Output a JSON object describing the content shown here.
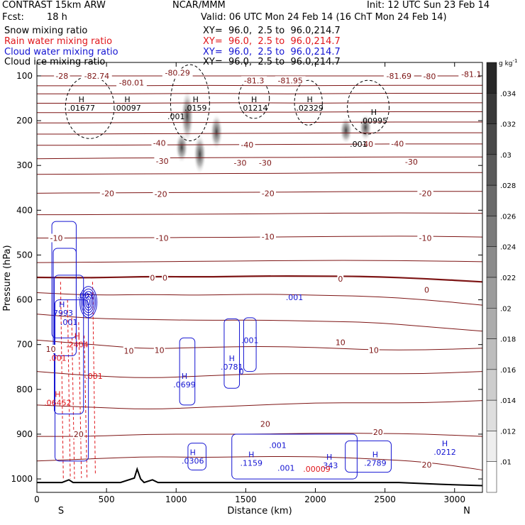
{
  "header": {
    "model": "CONTRAST 15km ARW",
    "center": "NCAR/MMM",
    "init": "Init: 12 UTC Sun 23 Feb 14",
    "fcst_label": "Fcst:",
    "fcst_value": "18 h",
    "valid": "Valid: 06 UTC Mon 24 Feb 14 (16 ChT Mon 24 Feb 14)",
    "fields": [
      {
        "name": "Snow mixing ratio",
        "xy": "XY=  96.0,  2.5 to  96.0,214.7",
        "color": "#000000"
      },
      {
        "name": "Rain water mixing ratio",
        "xy": "XY=  96.0,  2.5 to  96.0,214.7",
        "color": "#e0161b"
      },
      {
        "name": "Cloud water mixing ratio",
        "xy": "XY=  96.0,  2.5 to  96.0,214.7",
        "color": "#1414d2"
      },
      {
        "name": "Cloud ice mixing ratio",
        "xy": "XY=  96.0,  2.5 to  96.0,214.7",
        "color": "#000000"
      }
    ]
  },
  "chart_data": {
    "type": "contour",
    "xlabel": "Distance (km)",
    "ylabel": "Pressure (hPa)",
    "xlim": [
      0,
      3200
    ],
    "ylim": [
      1030,
      70
    ],
    "x_ticks": [
      0,
      500,
      1000,
      1500,
      2000,
      2500,
      3000
    ],
    "y_ticks": [
      100,
      200,
      300,
      400,
      500,
      600,
      700,
      800,
      900,
      1000
    ],
    "x_end_labels": {
      "left": "S",
      "right": "N"
    },
    "colorbar": {
      "unit": "g kg",
      "unit_exp": "-1",
      "ticks": [
        ".034",
        ".032",
        ".03",
        ".028",
        ".026",
        ".024",
        ".022",
        ".02",
        ".018",
        ".016",
        ".014",
        ".012",
        ".01"
      ]
    },
    "temperature_contours": {
      "color": "#7d1414",
      "lines": [
        {
          "y": [
            100,
            100,
            100,
            100,
            100,
            100,
            100,
            100,
            100
          ]
        },
        {
          "y": [
            122,
            122,
            122,
            121,
            122,
            122,
            121,
            121,
            121
          ]
        },
        {
          "y": [
            140,
            140,
            140,
            139,
            140,
            140,
            139,
            139,
            139
          ]
        },
        {
          "y": [
            161,
            161,
            161,
            160,
            160,
            161,
            160,
            160,
            160
          ]
        },
        {
          "y": [
            182,
            182,
            182,
            181,
            181,
            181,
            180,
            180,
            180
          ]
        },
        {
          "y": [
            205,
            205,
            204,
            204,
            204,
            204,
            203,
            203,
            203
          ]
        },
        {
          "y": [
            230,
            230,
            229,
            229,
            228,
            228,
            227,
            227,
            227
          ]
        },
        {
          "y": [
            255,
            255,
            254,
            254,
            253,
            253,
            252,
            252,
            252
          ]
        },
        {
          "y": [
            285,
            284,
            283,
            283,
            282,
            282,
            281,
            281,
            281
          ]
        },
        {
          "y": [
            320,
            319,
            319,
            318,
            318,
            317,
            316,
            316,
            316
          ]
        },
        {
          "y": [
            362,
            361,
            361,
            360,
            360,
            359,
            358,
            358,
            358
          ]
        },
        {
          "y": [
            410,
            410,
            409,
            409,
            408,
            407,
            406,
            406,
            407
          ]
        },
        {
          "y": [
            462,
            462,
            461,
            461,
            460,
            459,
            458,
            458,
            460
          ]
        },
        {
          "y": [
            517,
            516,
            515,
            514,
            513,
            512,
            512,
            513,
            515
          ]
        },
        {
          "y": [
            550,
            551,
            548,
            549,
            547,
            547,
            548,
            553,
            560
          ],
          "thick": true
        },
        {
          "y": [
            584,
            590,
            588,
            590,
            587,
            590,
            592,
            600,
            612
          ]
        },
        {
          "y": [
            632,
            642,
            644,
            646,
            645,
            648,
            650,
            660,
            670
          ]
        },
        {
          "y": [
            690,
            700,
            710,
            706,
            704,
            706,
            712,
            712,
            708
          ]
        },
        {
          "y": [
            760,
            770,
            775,
            770,
            765,
            765,
            765,
            765,
            760
          ]
        },
        {
          "y": [
            835,
            840,
            845,
            840,
            835,
            830,
            830,
            830,
            825
          ]
        },
        {
          "y": [
            905,
            905,
            900,
            900,
            900,
            898,
            898,
            900,
            905
          ]
        },
        {
          "y": [
            960,
            955,
            950,
            952,
            950,
            950,
            955,
            962,
            980
          ]
        }
      ],
      "labels": [
        {
          "x": 180,
          "p": 100,
          "text": "-28"
        },
        {
          "x": 430,
          "p": 100,
          "text": "-82.74"
        },
        {
          "x": 680,
          "p": 115,
          "text": "-80.01"
        },
        {
          "x": 1010,
          "p": 93,
          "text": "-80.29"
        },
        {
          "x": 1560,
          "p": 110,
          "text": "-81.3"
        },
        {
          "x": 1820,
          "p": 110,
          "text": "-81.95"
        },
        {
          "x": 2600,
          "p": 100,
          "text": "-81.69"
        },
        {
          "x": 2820,
          "p": 101,
          "text": "-80"
        },
        {
          "x": 3120,
          "p": 96,
          "text": "-81.1"
        },
        {
          "x": 880,
          "p": 250,
          "text": "-40"
        },
        {
          "x": 1510,
          "p": 254,
          "text": "-40"
        },
        {
          "x": 2370,
          "p": 252,
          "text": "-40"
        },
        {
          "x": 2590,
          "p": 251,
          "text": "-40"
        },
        {
          "x": 900,
          "p": 290,
          "text": "-30"
        },
        {
          "x": 1460,
          "p": 294,
          "text": "-30"
        },
        {
          "x": 1640,
          "p": 294,
          "text": "-30"
        },
        {
          "x": 2690,
          "p": 292,
          "text": "-30"
        },
        {
          "x": 510,
          "p": 362,
          "text": "-20"
        },
        {
          "x": 890,
          "p": 364,
          "text": "-20"
        },
        {
          "x": 1660,
          "p": 362,
          "text": "-20"
        },
        {
          "x": 2790,
          "p": 362,
          "text": "-20"
        },
        {
          "x": 140,
          "p": 462,
          "text": "-10"
        },
        {
          "x": 900,
          "p": 462,
          "text": "-10"
        },
        {
          "x": 1660,
          "p": 459,
          "text": "-10"
        },
        {
          "x": 2790,
          "p": 462,
          "text": "-10"
        },
        {
          "x": 830,
          "p": 551,
          "text": "0"
        },
        {
          "x": 920,
          "p": 551,
          "text": "0"
        },
        {
          "x": 2180,
          "p": 553,
          "text": "0"
        },
        {
          "x": 2800,
          "p": 578,
          "text": "0"
        },
        {
          "x": 100,
          "p": 710,
          "text": "10"
        },
        {
          "x": 660,
          "p": 714,
          "text": "10"
        },
        {
          "x": 880,
          "p": 712,
          "text": "10"
        },
        {
          "x": 2180,
          "p": 695,
          "text": "10"
        },
        {
          "x": 2420,
          "p": 712,
          "text": "10"
        },
        {
          "x": 1640,
          "p": 877,
          "text": "20"
        },
        {
          "x": 2450,
          "p": 895,
          "text": "20"
        },
        {
          "x": 2800,
          "p": 968,
          "text": "20"
        },
        {
          "x": 300,
          "p": 900,
          "text": "20"
        }
      ]
    },
    "cloud_ice_shading": [
      {
        "x": 1080,
        "p": 190,
        "h": 60
      },
      {
        "x": 1170,
        "p": 275,
        "h": 45
      },
      {
        "x": 1040,
        "p": 260,
        "h": 35
      },
      {
        "x": 1290,
        "p": 225,
        "h": 40
      },
      {
        "x": 2220,
        "p": 222,
        "h": 30
      },
      {
        "x": 2360,
        "p": 215,
        "h": 30
      }
    ],
    "extrema": [
      {
        "kind": "H",
        "x": 320,
        "p": 162,
        "value": ".01677",
        "color": "#000000"
      },
      {
        "kind": "H",
        "x": 650,
        "p": 162,
        "value": ".00097",
        "color": "#000000"
      },
      {
        "kind": "H",
        "x": 1140,
        "p": 162,
        "value": ".0159",
        "color": "#000000"
      },
      {
        "kind": "H",
        "x": 1560,
        "p": 162,
        "value": ".01214",
        "color": "#000000"
      },
      {
        "kind": "H",
        "x": 1960,
        "p": 162,
        "value": ".02329",
        "color": "#000000"
      },
      {
        "kind": "H",
        "x": 2420,
        "p": 190,
        "value": ".00995",
        "color": "#000000"
      },
      {
        "kind": "H",
        "x": 180,
        "p": 620,
        "value": ".7993",
        "color": "#1414d2"
      },
      {
        "kind": "H",
        "x": 290,
        "p": 690,
        "value": ".2404",
        "color": "#e0161b"
      },
      {
        "kind": "H",
        "x": 150,
        "p": 820,
        "value": ".06452",
        "color": "#e0161b"
      },
      {
        "kind": "H",
        "x": 1060,
        "p": 780,
        "value": ".0699",
        "color": "#1414d2"
      },
      {
        "kind": "H",
        "x": 1400,
        "p": 740,
        "value": ".0781",
        "color": "#1414d2"
      },
      {
        "kind": "H",
        "x": 1120,
        "p": 950,
        "value": ".0306",
        "color": "#1414d2"
      },
      {
        "kind": "H",
        "x": 1540,
        "p": 955,
        "value": ".1159",
        "color": "#1414d2"
      },
      {
        "kind": "H",
        "x": 2100,
        "p": 960,
        "value": ".343",
        "color": "#1414d2"
      },
      {
        "kind": "H",
        "x": 2430,
        "p": 955,
        "value": ".2789",
        "color": "#1414d2"
      },
      {
        "kind": "H",
        "x": 2930,
        "p": 930,
        "value": ".0212",
        "color": "#1414d2"
      },
      {
        "kind": "H",
        "x": 1850,
        "p": 585,
        "value": ".001",
        "color": "#1414d2",
        "hide_kind": true
      }
    ],
    "small_labels": [
      {
        "x": 1000,
        "p": 190,
        "text": ".001",
        "color": "#000000"
      },
      {
        "x": 2310,
        "p": 252,
        "text": ".001",
        "color": "#000000"
      },
      {
        "x": 350,
        "p": 590,
        "text": ".001",
        "color": "#1414d2"
      },
      {
        "x": 230,
        "p": 650,
        "text": ".001",
        "color": "#1414d2"
      },
      {
        "x": 150,
        "p": 730,
        "text": ".001",
        "color": "#e0161b"
      },
      {
        "x": 410,
        "p": 770,
        "text": ".001",
        "color": "#e0161b"
      },
      {
        "x": 1530,
        "p": 690,
        "text": ".001",
        "color": "#1414d2"
      },
      {
        "x": 1730,
        "p": 925,
        "text": ".001",
        "color": "#1414d2"
      },
      {
        "x": 1790,
        "p": 975,
        "text": ".001",
        "color": "#1414d2"
      },
      {
        "x": 2010,
        "p": 978,
        "text": ".00009",
        "color": "#e0161b"
      }
    ]
  }
}
